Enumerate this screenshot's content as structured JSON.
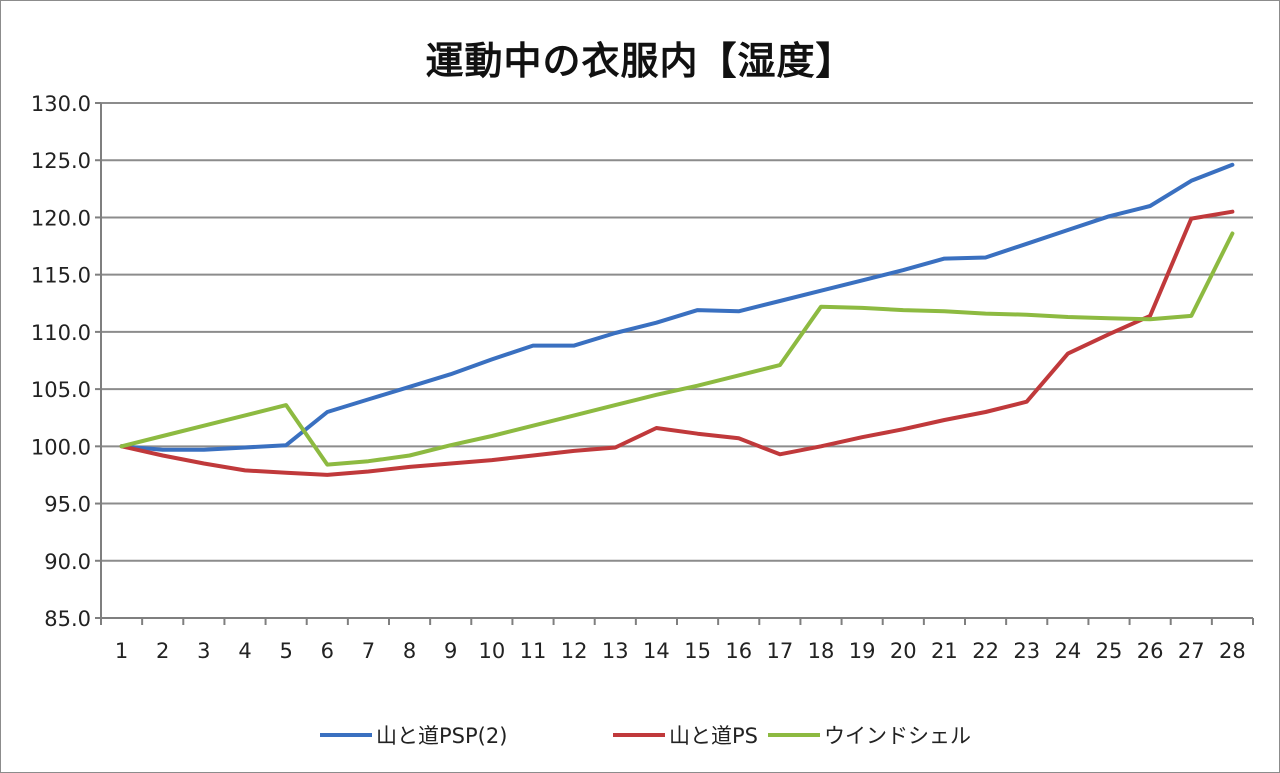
{
  "chart_data": {
    "type": "line",
    "title": "運動中の衣服内【湿度】",
    "xlabel": "",
    "ylabel": "",
    "x": [
      1,
      2,
      3,
      4,
      5,
      6,
      7,
      8,
      9,
      10,
      11,
      12,
      13,
      14,
      15,
      16,
      17,
      18,
      19,
      20,
      21,
      22,
      23,
      24,
      25,
      26,
      27,
      28
    ],
    "ylim": [
      85,
      130
    ],
    "yticks": [
      "85.0",
      "90.0",
      "95.0",
      "100.0",
      "105.0",
      "110.0",
      "115.0",
      "120.0",
      "125.0",
      "130.0"
    ],
    "grid": true,
    "legend_position": "bottom",
    "series": [
      {
        "name": "山と道PSP(2)",
        "color": "#3a70c0",
        "values": [
          100.0,
          99.7,
          99.7,
          99.9,
          100.1,
          103.0,
          104.1,
          105.2,
          106.3,
          107.6,
          108.8,
          108.8,
          109.9,
          110.8,
          111.9,
          111.8,
          112.7,
          113.6,
          114.5,
          115.4,
          116.4,
          116.5,
          117.7,
          118.9,
          120.1,
          121.0,
          123.2,
          124.6
        ]
      },
      {
        "name": "山と道PS",
        "color": "#c0393b",
        "values": [
          100.0,
          99.2,
          98.5,
          97.9,
          97.7,
          97.5,
          97.8,
          98.2,
          98.5,
          98.8,
          99.2,
          99.6,
          99.9,
          101.6,
          101.1,
          100.7,
          99.3,
          100.0,
          100.8,
          101.5,
          102.3,
          103.0,
          103.9,
          108.1,
          109.8,
          111.4,
          119.9,
          120.5
        ]
      },
      {
        "name": "ウインドシェル",
        "color": "#8dba41",
        "values": [
          100.0,
          100.9,
          101.8,
          102.7,
          103.6,
          98.4,
          98.7,
          99.2,
          100.1,
          100.9,
          101.8,
          102.7,
          103.6,
          104.5,
          105.3,
          106.2,
          107.1,
          112.2,
          112.1,
          111.9,
          111.8,
          111.6,
          111.5,
          111.3,
          111.2,
          111.1,
          111.4,
          118.6
        ]
      }
    ]
  }
}
